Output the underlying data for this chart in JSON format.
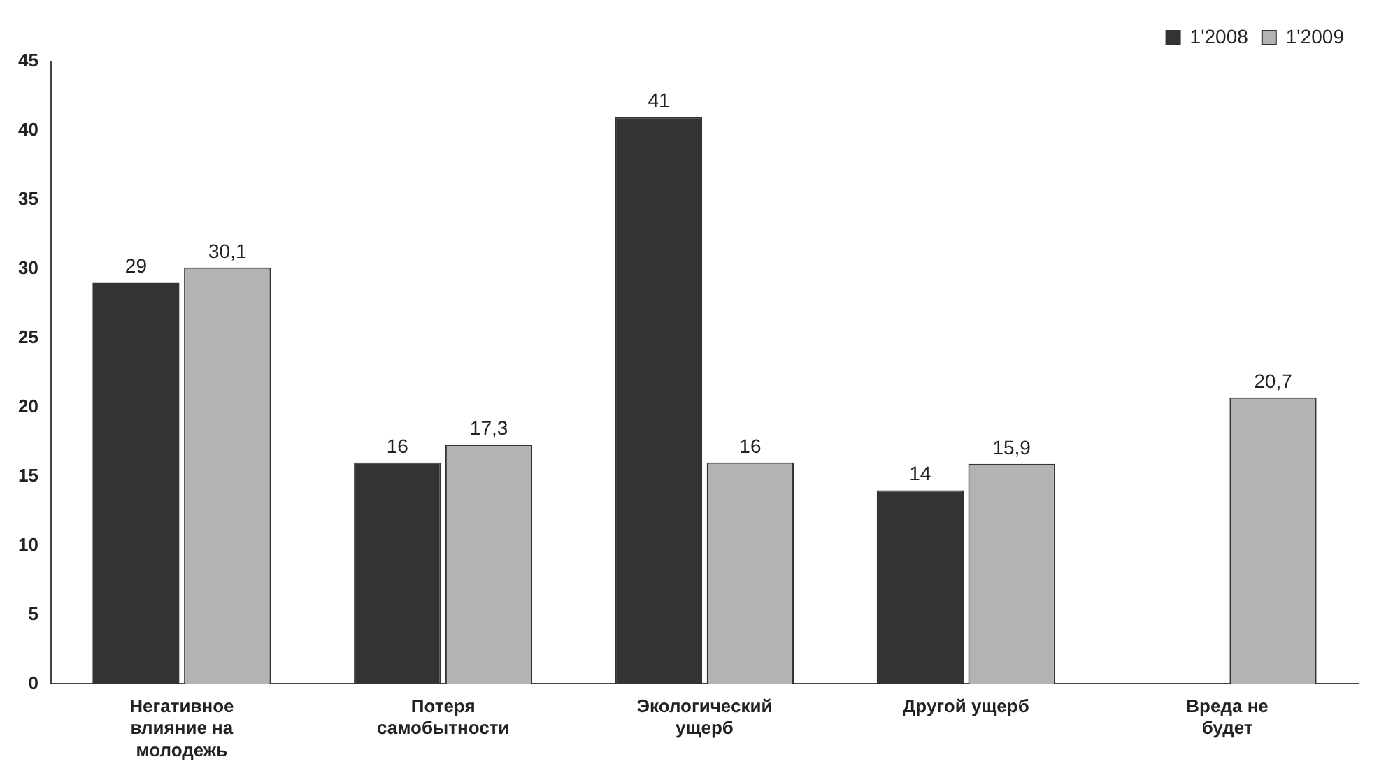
{
  "chart_data": {
    "type": "bar",
    "categories": [
      "Негативное влияние на молодежь",
      "Потеря самобытности",
      "Экологический ущерб",
      "Другой ущерб",
      "Вреда не будет"
    ],
    "series": [
      {
        "name": "1'2008",
        "color": "#333333",
        "values": [
          29,
          16,
          41,
          14,
          null
        ],
        "value_labels": [
          "29",
          "16",
          "41",
          "14",
          null
        ]
      },
      {
        "name": "1'2009",
        "color": "#b3b3b3",
        "values": [
          30.1,
          17.3,
          16,
          15.9,
          20.7
        ],
        "value_labels": [
          "30,1",
          "17,3",
          "16",
          "15,9",
          "20,7"
        ]
      }
    ],
    "ylim": [
      0,
      45
    ],
    "yticks": [
      0,
      5,
      10,
      15,
      20,
      25,
      30,
      35,
      40,
      45
    ],
    "grid": false,
    "legend": "top right"
  }
}
